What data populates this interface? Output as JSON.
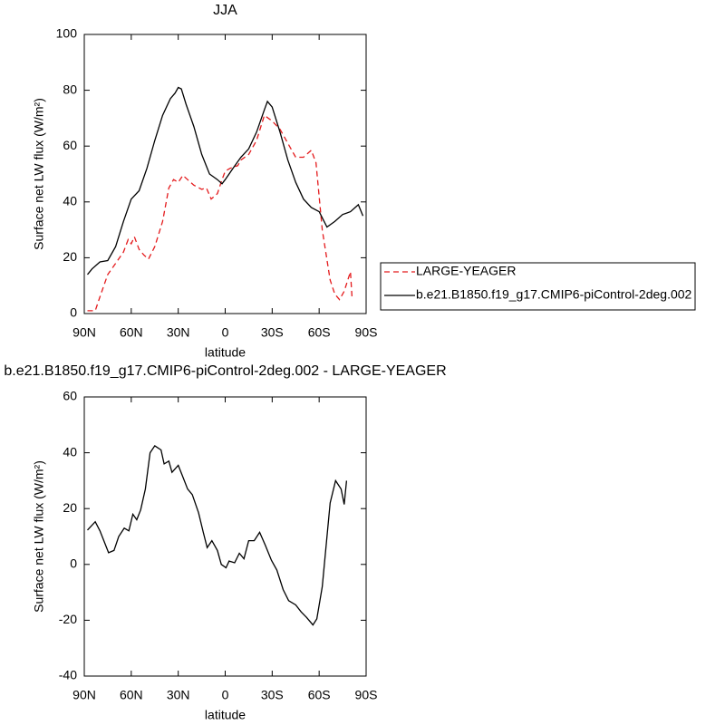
{
  "chart_data": [
    {
      "type": "line",
      "title": "JJA",
      "x_label": "latitude",
      "y_label": "Surface net LW flux (W/m²)",
      "xlim": [
        90,
        -90
      ],
      "xticks": [
        {
          "value": 90,
          "label": "90N"
        },
        {
          "value": 60,
          "label": "60N"
        },
        {
          "value": 30,
          "label": "30N"
        },
        0,
        {
          "value": -30,
          "label": "30S"
        },
        {
          "value": -60,
          "label": "60S"
        },
        {
          "value": -90,
          "label": "90S"
        }
      ],
      "ylim": [
        0,
        100
      ],
      "yticks": [
        0,
        20,
        40,
        60,
        80,
        100
      ],
      "legend": "right",
      "series": [
        {
          "name": "LARGE-YEAGER",
          "color": "#e41a1c",
          "dash": true,
          "x": [
            88,
            83,
            80,
            75,
            70,
            65,
            62,
            60,
            58,
            55,
            52,
            49,
            45,
            40,
            36,
            33,
            30,
            27,
            24,
            20,
            15,
            12,
            9,
            5,
            2,
            0,
            -3,
            -8,
            -10,
            -15,
            -20,
            -25,
            -30,
            -35,
            -40,
            -45,
            -50,
            -55,
            -58,
            -62,
            -67,
            -70,
            -73,
            -76,
            -80,
            -81
          ],
          "values": [
            1,
            1,
            6,
            14,
            18,
            22,
            26.5,
            25,
            27.5,
            23,
            21,
            19.5,
            24,
            33,
            45,
            48,
            47,
            49.5,
            48,
            46,
            44.5,
            45,
            41,
            43,
            48,
            51,
            52,
            53,
            55,
            57,
            62,
            71,
            69,
            66,
            61,
            56,
            56,
            58.5,
            54,
            30,
            12,
            7,
            5,
            8,
            15,
            6
          ]
        },
        {
          "name": "b.e21.B1850.f19_g17.CMIP6-piControl-2deg.002",
          "color": "#000000",
          "dash": false,
          "x": [
            88,
            85,
            80,
            75,
            70,
            65,
            60,
            55,
            50,
            45,
            40,
            35,
            32,
            30,
            28,
            25,
            20,
            15,
            10,
            5,
            2,
            0,
            -5,
            -10,
            -15,
            -20,
            -25,
            -27,
            -30,
            -35,
            -40,
            -45,
            -50,
            -55,
            -60,
            -65,
            -70,
            -75,
            -80,
            -85,
            -88
          ],
          "values": [
            14,
            16,
            18.5,
            19,
            24,
            33,
            41,
            44,
            52,
            62,
            71,
            77,
            79,
            81,
            80.5,
            75,
            67,
            57,
            50,
            48,
            46.5,
            48,
            52,
            56,
            59,
            65,
            73,
            76,
            74,
            65,
            55,
            47,
            41,
            38,
            36.5,
            31,
            33,
            35.5,
            36.5,
            39,
            35
          ]
        }
      ]
    },
    {
      "type": "line",
      "title": "b.e21.B1850.f19_g17.CMIP6-piControl-2deg.002 - LARGE-YEAGER",
      "x_label": "latitude",
      "y_label": "Surface net LW flux (W/m²)",
      "xlim": [
        90,
        -90
      ],
      "xticks": [
        {
          "value": 90,
          "label": "90N"
        },
        {
          "value": 60,
          "label": "60N"
        },
        {
          "value": 30,
          "label": "30N"
        },
        0,
        {
          "value": -30,
          "label": "30S"
        },
        {
          "value": -60,
          "label": "60S"
        },
        {
          "value": -90,
          "label": "90S"
        }
      ],
      "ylim": [
        -40,
        60
      ],
      "yticks": [
        -40,
        -20,
        0,
        20,
        40,
        60
      ],
      "series": [
        {
          "color": "#000000",
          "dash": false,
          "x": [
            88,
            83,
            80,
            74.5,
            71,
            68,
            64.5,
            61.5,
            59,
            56.5,
            54,
            51,
            48,
            45,
            41,
            39,
            36,
            34,
            30,
            27.5,
            24,
            21,
            17,
            14,
            11.5,
            8.5,
            5,
            2.5,
            -0.5,
            -2.5,
            -6,
            -9,
            -12,
            -15,
            -18.5,
            -22,
            -25.5,
            -29.5,
            -33,
            -37,
            -40.5,
            -45,
            -48.5,
            -52,
            -56,
            -58.5,
            -62,
            -67,
            -70.5,
            -74,
            -76,
            -77.5
          ],
          "values": [
            12.3,
            15.3,
            12,
            4.2,
            5,
            10,
            13,
            12,
            18,
            16,
            19.5,
            27,
            40,
            42.5,
            41,
            36,
            37,
            33,
            35.5,
            32,
            27,
            25,
            18.5,
            11.5,
            6,
            8.5,
            5,
            0,
            -1.2,
            1.2,
            0.6,
            4,
            2,
            8.5,
            8.5,
            11.5,
            7,
            1.5,
            -2,
            -9,
            -13,
            -14.5,
            -17,
            -19,
            -21.7,
            -19.5,
            -8,
            22,
            30,
            27,
            21.5,
            30
          ]
        }
      ]
    }
  ]
}
